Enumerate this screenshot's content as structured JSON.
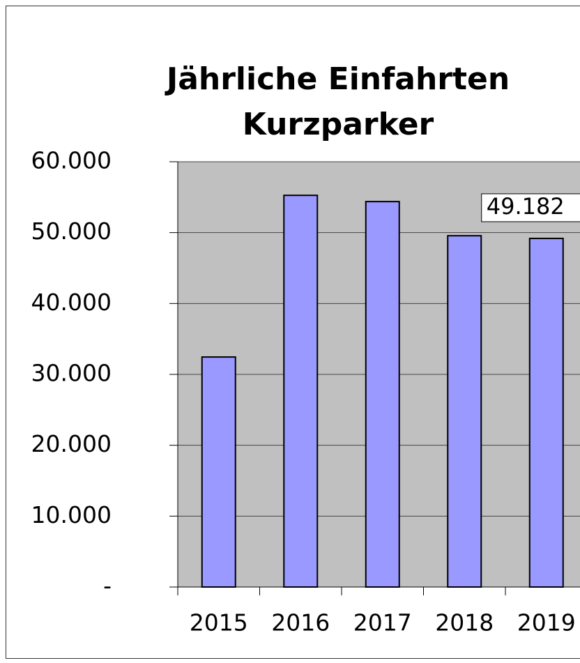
{
  "chart_data": {
    "type": "bar",
    "title": [
      "Jährliche Einfahrten",
      "Kurzparker"
    ],
    "categories": [
      "2015",
      "2016",
      "2017",
      "2018",
      "2019"
    ],
    "values": [
      32450,
      55260,
      54380,
      49560,
      49182
    ],
    "value_labels": [
      null,
      null,
      null,
      null,
      "49.182"
    ],
    "color": "#9999ff",
    "ylim": [
      0,
      60000
    ],
    "yticks": [
      {
        "value": 0,
        "label": "-"
      },
      {
        "value": 10000,
        "label": "10.000"
      },
      {
        "value": 20000,
        "label": "20.000"
      },
      {
        "value": 30000,
        "label": "30.000"
      },
      {
        "value": 40000,
        "label": "40.000"
      },
      {
        "value": 50000,
        "label": "50.000"
      },
      {
        "value": 60000,
        "label": "60.000"
      }
    ],
    "grid": true
  }
}
